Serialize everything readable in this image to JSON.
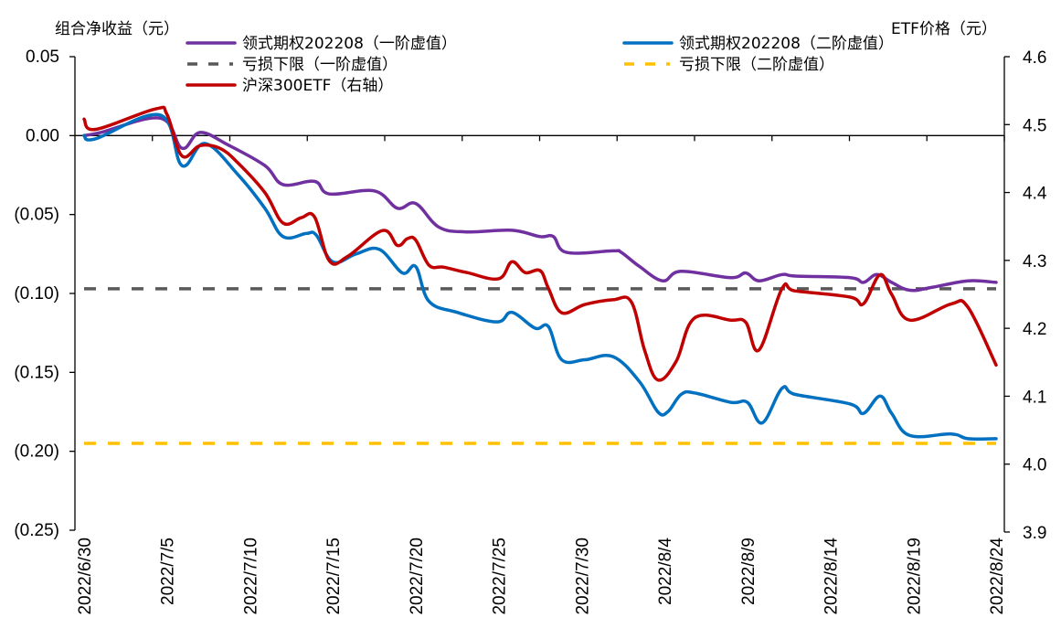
{
  "chart_data": {
    "type": "line",
    "title": "",
    "ylabel_left": "组合净收益（元）",
    "ylabel_right": "ETF价格（元）",
    "xlabel": "",
    "x_start_date": "2022/6/30",
    "x_unit": "days since 2022/6/30",
    "x_range_days": [
      0,
      55
    ],
    "x_tick_labels": [
      "2022/6/30",
      "2022/7/5",
      "2022/7/10",
      "2022/7/15",
      "2022/7/20",
      "2022/7/25",
      "2022/7/30",
      "2022/8/4",
      "2022/8/9",
      "2022/8/14",
      "2022/8/19",
      "2022/8/24"
    ],
    "x_tick_days": [
      0,
      5,
      10,
      15,
      20,
      25,
      30,
      35,
      40,
      45,
      50,
      55
    ],
    "ylim_left": [
      -0.25,
      0.05
    ],
    "y_ticks_left": [
      0.05,
      0.0,
      -0.05,
      -0.1,
      -0.15,
      -0.2,
      -0.25
    ],
    "y_tick_labels_left": [
      "0.05",
      "0.00",
      "(0.05)",
      "(0.10)",
      "(0.15)",
      "(0.20)",
      "(0.25)"
    ],
    "ylim_right": [
      3.9,
      4.6
    ],
    "y_ticks_right": [
      4.6,
      4.5,
      4.4,
      4.3,
      4.2,
      4.1,
      4.0,
      3.9
    ],
    "y_tick_labels_right": [
      "4.6",
      "4.5",
      "4.4",
      "4.3",
      "4.2",
      "4.1",
      "4.0",
      "3.9"
    ],
    "grid": false,
    "legend_position": "top",
    "series": [
      {
        "name": "领式期权202208（一阶虚值）",
        "axis": "left",
        "style": "solid",
        "color": "#7030A0",
        "x": [
          0,
          1.0,
          4.6,
          5.9,
          7.0,
          8.7,
          10.9,
          12.0,
          13.9,
          14.8,
          17.5,
          18.9,
          20.0,
          21.4,
          23.1,
          25.8,
          27.5,
          28.3,
          29.1,
          31.9,
          32.4,
          33.5,
          34.9,
          36.0,
          39.0,
          39.9,
          40.7,
          42.1,
          42.9,
          46.2,
          47.0,
          47.8,
          48.7,
          49.8,
          51.2,
          53.3,
          55.0
        ],
        "y": [
          0.0,
          0.002,
          0.011,
          -0.008,
          0.002,
          -0.006,
          -0.019,
          -0.031,
          -0.029,
          -0.037,
          -0.035,
          -0.046,
          -0.043,
          -0.058,
          -0.061,
          -0.06,
          -0.064,
          -0.064,
          -0.074,
          -0.073,
          -0.074,
          -0.083,
          -0.092,
          -0.086,
          -0.09,
          -0.087,
          -0.092,
          -0.088,
          -0.089,
          -0.09,
          -0.093,
          -0.088,
          -0.093,
          -0.098,
          -0.096,
          -0.092,
          -0.093
        ]
      },
      {
        "name": "领式期权202208（二阶虚值）",
        "axis": "left",
        "style": "solid",
        "color": "#0070C0",
        "x": [
          0,
          0.7,
          4.6,
          5.9,
          7.3,
          9.3,
          10.9,
          12.0,
          13.4,
          14.0,
          15.0,
          16.4,
          17.8,
          19.2,
          20.0,
          20.8,
          22.5,
          24.9,
          25.8,
          27.2,
          28.0,
          28.8,
          30.2,
          31.9,
          33.5,
          34.6,
          35.2,
          36.0,
          36.8,
          39.0,
          40.0,
          40.9,
          42.1,
          42.9,
          46.2,
          47.0,
          48.0,
          48.7,
          49.8,
          52.3,
          53.3,
          55.0
        ],
        "y": [
          0.0,
          -0.002,
          0.013,
          -0.019,
          -0.005,
          -0.025,
          -0.046,
          -0.064,
          -0.062,
          -0.063,
          -0.08,
          -0.075,
          -0.072,
          -0.087,
          -0.083,
          -0.105,
          -0.112,
          -0.118,
          -0.112,
          -0.122,
          -0.121,
          -0.142,
          -0.142,
          -0.14,
          -0.156,
          -0.175,
          -0.175,
          -0.164,
          -0.163,
          -0.169,
          -0.169,
          -0.182,
          -0.16,
          -0.164,
          -0.17,
          -0.176,
          -0.165,
          -0.176,
          -0.19,
          -0.189,
          -0.192,
          -0.192
        ]
      },
      {
        "name": "亏损下限（一阶虚值）",
        "axis": "left",
        "style": "dashed",
        "color": "#595959",
        "x": [
          0,
          55
        ],
        "y": [
          -0.097,
          -0.097
        ]
      },
      {
        "name": "亏损下限（二阶虚值）",
        "axis": "left",
        "style": "dashed",
        "color": "#FFC000",
        "x": [
          0,
          55
        ],
        "y": [
          -0.195,
          -0.195
        ]
      },
      {
        "name": "沪深300ETF（右轴）",
        "axis": "right",
        "style": "solid",
        "color": "#C00000",
        "x": [
          0,
          0.7,
          4.3,
          5.0,
          5.9,
          7.0,
          8.2,
          9.3,
          10.9,
          12.0,
          13.1,
          13.9,
          14.8,
          15.9,
          18.0,
          18.9,
          19.5,
          20.0,
          20.8,
          21.7,
          23.1,
          25.0,
          25.8,
          26.6,
          27.5,
          28.0,
          28.8,
          30.2,
          31.9,
          33.0,
          33.8,
          34.6,
          35.7,
          36.8,
          39.0,
          39.9,
          40.7,
          42.1,
          42.9,
          46.2,
          47.0,
          48.0,
          48.7,
          49.8,
          52.3,
          53.3,
          55.0
        ],
        "y": [
          4.508,
          4.493,
          4.523,
          4.515,
          4.454,
          4.469,
          4.465,
          4.443,
          4.4,
          4.355,
          4.363,
          4.364,
          4.299,
          4.306,
          4.344,
          4.322,
          4.332,
          4.33,
          4.293,
          4.29,
          4.282,
          4.273,
          4.298,
          4.282,
          4.285,
          4.259,
          4.223,
          4.235,
          4.242,
          4.239,
          4.168,
          4.124,
          4.151,
          4.215,
          4.212,
          4.209,
          4.168,
          4.259,
          4.255,
          4.246,
          4.236,
          4.279,
          4.25,
          4.212,
          4.236,
          4.231,
          4.146
        ]
      }
    ],
    "legend": [
      {
        "label": "领式期权202208（一阶虚值）",
        "color": "#7030A0",
        "style": "solid"
      },
      {
        "label": "领式期权202208（二阶虚值）",
        "color": "#0070C0",
        "style": "solid"
      },
      {
        "label": "亏损下限（一阶虚值）",
        "color": "#595959",
        "style": "dashed"
      },
      {
        "label": "亏损下限（二阶虚值）",
        "color": "#FFC000",
        "style": "dashed"
      },
      {
        "label": "沪深300ETF（右轴）",
        "color": "#C00000",
        "style": "solid"
      }
    ]
  }
}
